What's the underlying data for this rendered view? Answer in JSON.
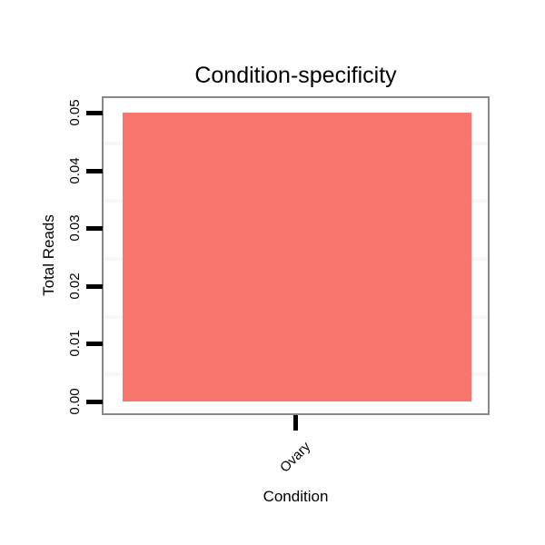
{
  "title": "Condition-specificity",
  "y_axis": {
    "label": "Total Reads",
    "ticks": [
      "0.00",
      "0.01",
      "0.02",
      "0.03",
      "0.04",
      "0.05"
    ]
  },
  "x_axis": {
    "label": "Condition",
    "categories": [
      "Ovary"
    ]
  },
  "colors": {
    "bar": "#F8766D",
    "panel_border": "#888888",
    "minor_grid": "#F7F7F7",
    "tick": "#000000",
    "text": "#000000",
    "background": "#FFFFFF"
  },
  "chart_data": {
    "type": "bar",
    "categories": [
      "Ovary"
    ],
    "values": [
      0.05
    ],
    "title": "Condition-specificity",
    "xlabel": "Condition",
    "ylabel": "Total Reads",
    "ylim": [
      0,
      0.05
    ],
    "y_ticks": [
      0.0,
      0.01,
      0.02,
      0.03,
      0.04,
      0.05
    ],
    "y_minor_gridlines": [
      0.005,
      0.015,
      0.025,
      0.035,
      0.045
    ],
    "bar_color": "#F8766D",
    "legend": "none",
    "grid": "minor-only",
    "orientation": "vertical"
  }
}
